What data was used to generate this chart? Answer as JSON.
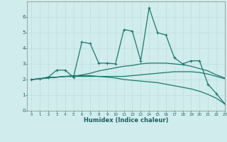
{
  "xlabel": "Humidex (Indice chaleur)",
  "background_color": "#d0ecec",
  "line_color": "#1a7a6e",
  "x_values": [
    0,
    1,
    2,
    3,
    4,
    5,
    6,
    7,
    8,
    9,
    10,
    11,
    12,
    13,
    14,
    15,
    16,
    17,
    18,
    19,
    20,
    21,
    22,
    23
  ],
  "line1_y": [
    2.0,
    2.05,
    2.15,
    2.6,
    2.6,
    2.15,
    4.4,
    4.3,
    3.05,
    3.05,
    3.0,
    5.2,
    5.1,
    3.2,
    6.6,
    5.0,
    4.85,
    3.4,
    3.0,
    3.2,
    3.2,
    1.7,
    1.1,
    0.45
  ],
  "line2_y": [
    2.0,
    2.05,
    2.15,
    2.15,
    2.2,
    2.2,
    2.3,
    2.4,
    2.55,
    2.65,
    2.75,
    2.85,
    2.9,
    3.0,
    3.05,
    3.05,
    3.05,
    3.0,
    2.95,
    2.85,
    2.7,
    2.55,
    2.3,
    2.1
  ],
  "line3_y": [
    2.0,
    2.05,
    2.1,
    2.15,
    2.2,
    2.2,
    2.2,
    2.2,
    2.2,
    2.2,
    2.2,
    2.2,
    2.25,
    2.3,
    2.35,
    2.4,
    2.45,
    2.5,
    2.5,
    2.5,
    2.45,
    2.35,
    2.2,
    2.05
  ],
  "line4_y": [
    2.0,
    2.05,
    2.1,
    2.15,
    2.2,
    2.25,
    2.25,
    2.25,
    2.2,
    2.15,
    2.1,
    2.0,
    1.95,
    1.9,
    1.85,
    1.8,
    1.7,
    1.6,
    1.5,
    1.4,
    1.25,
    1.05,
    0.8,
    0.45
  ],
  "ylim": [
    0,
    7
  ],
  "xlim": [
    -0.5,
    23
  ],
  "yticks": [
    0,
    1,
    2,
    3,
    4,
    5,
    6
  ],
  "grid_color": "#c0dede",
  "marker": "+"
}
